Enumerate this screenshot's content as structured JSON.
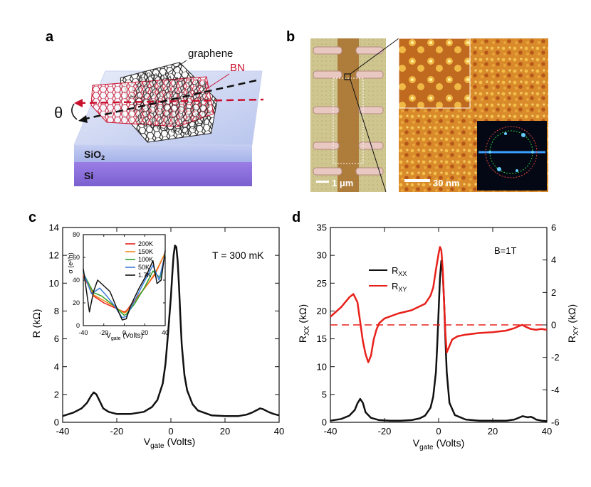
{
  "panels": {
    "a": {
      "label": "a",
      "graphene_label": "graphene",
      "bn_label": "BN",
      "theta_label": "θ",
      "sio2_label": "SiO",
      "sio2_sub": "2",
      "si_label": "Si",
      "colors": {
        "bn": "#c8102e",
        "graphene": "#222222",
        "sio2": "#aab7e8",
        "si": "#8b6fd6"
      }
    },
    "b": {
      "label": "b",
      "scale_left": "1 μm",
      "scale_right": "30 nm"
    },
    "c": {
      "label": "c",
      "annotation": "T = 300 mK",
      "ylabel_main": "R (kΩ)",
      "xlabel_main": "V",
      "xlabel_sub": "gate",
      "xlabel_units": "(Volts)",
      "inset_ylabel": "σ (e²/h)",
      "inset_xlabel": "V",
      "inset_xlabel_sub": "gate",
      "inset_xlabel_units": "(Volts)"
    },
    "d": {
      "label": "d",
      "annotation": "B=1T",
      "ylabel_left": "R",
      "ylabel_left_sub": "XX",
      "ylabel_left_units": "(kΩ)",
      "ylabel_right": "R",
      "ylabel_right_sub": "XY",
      "ylabel_right_units": "(kΩ)",
      "xlabel_main": "V",
      "xlabel_sub": "gate",
      "xlabel_units": "(Volts)",
      "legend": [
        {
          "label": "R",
          "sub": "XX",
          "color": "#111111"
        },
        {
          "label": "R",
          "sub": "XY",
          "color": "#e8201a"
        }
      ]
    }
  },
  "chart_data": [
    {
      "id": "c-main",
      "type": "line",
      "xlim": [
        -40,
        40
      ],
      "ylim": [
        0,
        14
      ],
      "xticks": [
        -40,
        -20,
        0,
        20,
        40
      ],
      "yticks": [
        0,
        2,
        4,
        6,
        8,
        10,
        12,
        14
      ],
      "xlabel": "Vgate (Volts)",
      "ylabel": "R (kΩ)",
      "series": [
        {
          "name": "R",
          "color": "#111111",
          "x": [
            -40,
            -36,
            -33,
            -31,
            -29.5,
            -28.5,
            -27.5,
            -26.5,
            -25,
            -23,
            -20,
            -15,
            -10,
            -7,
            -5,
            -3,
            -2,
            -1,
            0,
            0.5,
            1,
            1.5,
            2,
            2.5,
            3,
            3.5,
            4,
            5,
            6,
            8,
            10,
            15,
            20,
            25,
            28,
            30,
            32,
            33,
            34,
            36,
            38,
            40
          ],
          "y": [
            0.45,
            0.7,
            1.0,
            1.4,
            1.9,
            2.15,
            2.0,
            1.6,
            1.0,
            0.75,
            0.6,
            0.6,
            0.75,
            1.1,
            1.6,
            2.8,
            4.2,
            6.5,
            9.0,
            10.6,
            12.0,
            12.7,
            12.6,
            11.6,
            9.8,
            7.6,
            5.6,
            3.4,
            2.3,
            1.3,
            0.85,
            0.5,
            0.45,
            0.45,
            0.55,
            0.7,
            0.9,
            1.0,
            0.95,
            0.75,
            0.6,
            0.5
          ]
        }
      ]
    },
    {
      "id": "c-inset",
      "type": "line",
      "xlim": [
        -40,
        40
      ],
      "ylim": [
        0,
        80
      ],
      "xticks": [
        -40,
        -20,
        0,
        20,
        40
      ],
      "yticks": [
        0,
        20,
        40,
        60,
        80
      ],
      "xlabel": "Vgate (Volts)",
      "ylabel": "σ (e²/h)",
      "series": [
        {
          "name": "200K",
          "color": "#e8201a",
          "x": [
            -40,
            -30,
            -20,
            -10,
            0,
            2,
            10,
            20,
            30,
            40
          ],
          "y": [
            44,
            26,
            20,
            16,
            12,
            13,
            22,
            33,
            45,
            64
          ]
        },
        {
          "name": "150K",
          "color": "#f08a1c",
          "x": [
            -40,
            -30,
            -20,
            -10,
            0,
            2,
            10,
            20,
            30,
            40
          ],
          "y": [
            45,
            27,
            22,
            17,
            11,
            12,
            21,
            33,
            46,
            64
          ]
        },
        {
          "name": "100K",
          "color": "#2ca02c",
          "x": [
            -40,
            -30,
            -22,
            -15,
            -8,
            0,
            2,
            10,
            20,
            28,
            35,
            40
          ],
          "y": [
            46,
            29,
            26,
            21,
            16,
            9,
            10,
            19,
            34,
            48,
            42,
            63
          ]
        },
        {
          "name": "50K",
          "color": "#3a7bd5",
          "x": [
            -40,
            -32,
            -24,
            -18,
            -10,
            -2,
            2,
            8,
            18,
            28,
            34,
            40
          ],
          "y": [
            47,
            28,
            33,
            27,
            18,
            7,
            8,
            18,
            36,
            53,
            40,
            63
          ]
        },
        {
          "name": "1.7K",
          "color": "#111111",
          "x": [
            -40,
            -34,
            -30,
            -26,
            -20,
            -14,
            -8,
            -2,
            2,
            6,
            14,
            22,
            28,
            32,
            36,
            40
          ],
          "y": [
            50,
            12,
            30,
            40,
            35,
            30,
            17,
            5,
            6,
            17,
            32,
            45,
            57,
            37,
            40,
            66
          ]
        }
      ]
    },
    {
      "id": "d-main",
      "type": "line",
      "xlim": [
        -40,
        40
      ],
      "ylim": [
        0,
        35
      ],
      "y2lim": [
        -6,
        6
      ],
      "xticks": [
        -40,
        -20,
        0,
        20,
        40
      ],
      "yticks": [
        0,
        5,
        10,
        15,
        20,
        25,
        30,
        35
      ],
      "y2ticks": [
        -6,
        -4,
        -2,
        0,
        2,
        4,
        6
      ],
      "xlabel": "Vgate (Volts)",
      "ylabel": "RXX (kΩ)",
      "y2label": "RXY (kΩ)",
      "reference_line_y2": 0,
      "series": [
        {
          "name": "RXX",
          "axis": "left",
          "color": "#111111",
          "x": [
            -40,
            -36,
            -33,
            -31,
            -30,
            -29,
            -28,
            -27,
            -25,
            -22,
            -18,
            -14,
            -10,
            -7,
            -5,
            -3,
            -2,
            -1,
            -0.5,
            0,
            0.5,
            1,
            1.5,
            2,
            2.5,
            3,
            4,
            6,
            10,
            15,
            20,
            25,
            28,
            30,
            31,
            32,
            33,
            34,
            35,
            36,
            38,
            40
          ],
          "y": [
            0.3,
            0.6,
            1.2,
            2.2,
            3.4,
            4.2,
            3.5,
            1.8,
            0.8,
            0.4,
            0.3,
            0.3,
            0.4,
            0.7,
            1.2,
            2.6,
            4.6,
            9.0,
            14.0,
            20.0,
            26.0,
            29.0,
            27.0,
            22.0,
            15.0,
            9.0,
            3.5,
            1.3,
            0.5,
            0.3,
            0.3,
            0.3,
            0.5,
            0.9,
            1.1,
            1.0,
            0.9,
            1.0,
            0.8,
            0.5,
            0.3,
            0.2
          ]
        },
        {
          "name": "RXY",
          "axis": "right",
          "color": "#e8201a",
          "x": [
            -40,
            -36,
            -33,
            -31.5,
            -30,
            -29,
            -28,
            -27,
            -26,
            -25,
            -24,
            -23,
            -22,
            -20,
            -15,
            -10,
            -5,
            -3,
            -2,
            -1,
            0,
            0.5,
            1,
            1.5,
            2,
            2.5,
            3,
            4,
            5,
            7,
            10,
            15,
            20,
            25,
            28,
            30,
            31,
            32,
            34,
            36,
            38,
            40
          ],
          "y": [
            0.5,
            1.1,
            1.7,
            1.9,
            1.4,
            0.2,
            -1.0,
            -1.8,
            -2.3,
            -1.9,
            -0.9,
            -0.3,
            0.1,
            0.4,
            0.7,
            0.9,
            1.3,
            1.8,
            2.3,
            3.4,
            4.4,
            4.8,
            4.6,
            3.5,
            1.5,
            -0.5,
            -1.7,
            -1.3,
            -0.9,
            -0.7,
            -0.6,
            -0.5,
            -0.45,
            -0.35,
            -0.2,
            -0.05,
            0.0,
            -0.1,
            -0.25,
            -0.3,
            -0.25,
            -0.3
          ]
        }
      ]
    }
  ]
}
